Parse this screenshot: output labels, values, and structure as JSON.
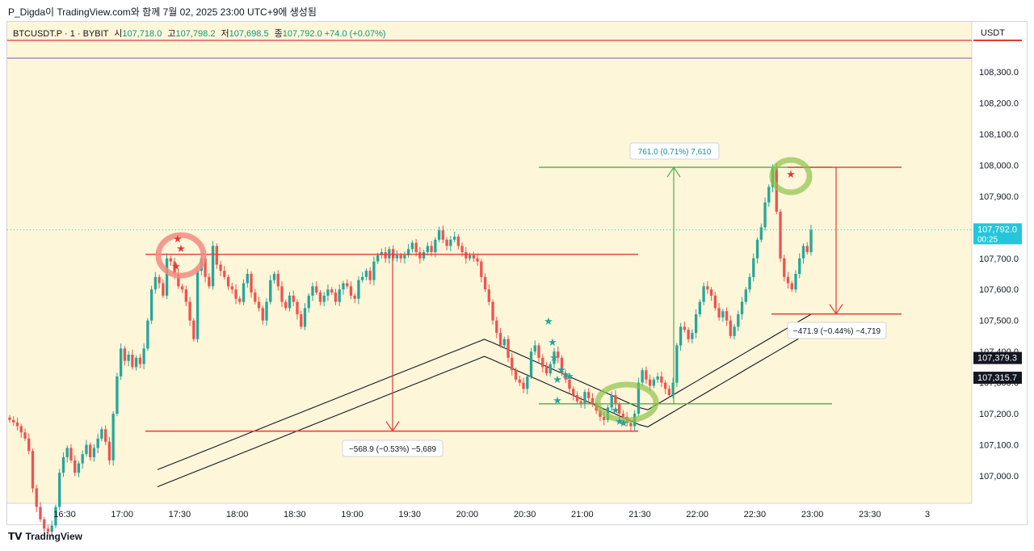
{
  "header": {
    "title": "P_Digda이 TradingView.com와 함께 7월 02, 2025 23:00 UTC+9에 생성됨"
  },
  "legend": {
    "symbol": "BTCUSDT.P · 1 · BYBIT",
    "open_label": "시",
    "open": "107,718.0",
    "high_label": "고",
    "high": "107,798.2",
    "low_label": "저",
    "low": "107,698.5",
    "close_label": "종",
    "close": "107,792.0",
    "change": "+74.0 (+0.07%)"
  },
  "axis": {
    "currency": "USDT"
  },
  "footer": {
    "brand": "TradingView"
  },
  "colors": {
    "up": "#26a69a",
    "down": "#ef5350",
    "background": "#fdf6d9",
    "green_line": "#4caf50",
    "red_line": "#e53935",
    "band": "#131722"
  },
  "chart_data": {
    "type": "candlestick",
    "symbol": "BTCUSDT.P",
    "interval": "1",
    "exchange": "BYBIT",
    "y_ticks": [
      107000,
      107100,
      107200,
      107300,
      107400,
      107500,
      107600,
      107700,
      107800,
      107900,
      108000,
      108100,
      108200,
      108300
    ],
    "y_tick_labels": [
      "107,000.0",
      "107,100.0",
      "107,200.0",
      "107,300.0",
      "107,400.0",
      "107,500.0",
      "107,600.0",
      "107,700.0",
      "107,800.0",
      "107,900.0",
      "108,000.0",
      "108,100.0",
      "108,200.0",
      "108,300.0"
    ],
    "x_ticks": [
      "16:30",
      "17:00",
      "17:30",
      "18:00",
      "18:30",
      "19:00",
      "19:30",
      "20:00",
      "20:30",
      "21:00",
      "21:30",
      "22:00",
      "22:30",
      "23:00",
      "23:30",
      "3"
    ],
    "price_labels": [
      {
        "value": 107792.0,
        "text": "107,792.0",
        "subtext": "00:25",
        "color": "#26c6da"
      },
      {
        "value": 107379.3,
        "text": "107,379.3",
        "color": "#131722"
      },
      {
        "value": 107315.7,
        "text": "107,315.7",
        "color": "#131722"
      }
    ],
    "measurements": [
      {
        "text": "−568.9 (−0.53%) −5,689",
        "from": 107713,
        "to": 107144
      },
      {
        "text": "761.0 (0.71%) 7,610",
        "from": 107232,
        "to": 107993
      },
      {
        "text": "−471.9 (−0.44%) −4,719",
        "from": 107993,
        "to": 107521
      }
    ],
    "horizontal_levels": [
      107713,
      107144,
      107993,
      107232,
      107521,
      108380,
      108322
    ],
    "candles_close": [
      107180,
      107172,
      107160,
      107140,
      107120,
      107080,
      106960,
      106900,
      106860,
      106830,
      106820,
      106840,
      106900,
      107010,
      107060,
      107090,
      107050,
      107010,
      107040,
      107070,
      107100,
      107060,
      107090,
      107120,
      107150,
      107110,
      107050,
      107200,
      107320,
      107410,
      107370,
      107390,
      107350,
      107380,
      107360,
      107410,
      107500,
      107600,
      107640,
      107620,
      107580,
      107700,
      107690,
      107650,
      107610,
      107600,
      107560,
      107500,
      107440,
      107660,
      107700,
      107640,
      107610,
      107740,
      107680,
      107660,
      107640,
      107610,
      107600,
      107570,
      107560,
      107620,
      107650,
      107590,
      107560,
      107540,
      107500,
      107560,
      107630,
      107650,
      107610,
      107560,
      107540,
      107580,
      107560,
      107520,
      107480,
      107540,
      107580,
      107610,
      107590,
      107560,
      107580,
      107600,
      107590,
      107560,
      107600,
      107620,
      107610,
      107580,
      107570,
      107630,
      107640,
      107660,
      107630,
      107690,
      107710,
      107720,
      107700,
      107730,
      107700,
      107710,
      107700,
      107710,
      107730,
      107750,
      107720,
      107700,
      107720,
      107740,
      107720,
      107760,
      107790,
      107760,
      107740,
      107760,
      107770,
      107740,
      107720,
      107700,
      107710,
      107700,
      107690,
      107640,
      107600,
      107560,
      107500,
      107460,
      107420,
      107440,
      107380,
      107340,
      107310,
      107300,
      107280,
      107320,
      107400,
      107420,
      107380,
      107350,
      107330,
      107360,
      107400,
      107380,
      107330,
      107310,
      107280,
      107260,
      107240,
      107230,
      107270,
      107250,
      107230,
      107210,
      107190,
      107180,
      107220,
      107260,
      107230,
      107200,
      107190,
      107170,
      107160,
      107200,
      107300,
      107340,
      107310,
      107290,
      107310,
      107320,
      107300,
      107280,
      107260,
      107300,
      107420,
      107480,
      107470,
      107440,
      107460,
      107520,
      107560,
      107610,
      107600,
      107580,
      107540,
      107510,
      107530,
      107500,
      107450,
      107480,
      107520,
      107560,
      107600,
      107640,
      107700,
      107760,
      107800,
      107880,
      107930,
      107990,
      107850,
      107700,
      107640,
      107620,
      107600,
      107650,
      107700,
      107740,
      107720,
      107792
    ]
  }
}
